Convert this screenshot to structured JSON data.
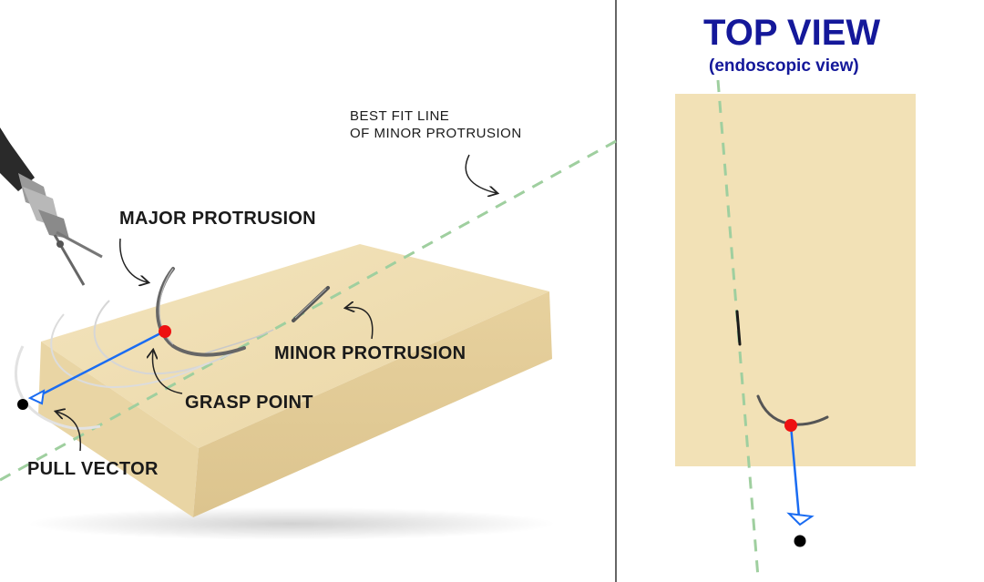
{
  "labels": {
    "best_fit_line_1": "BEST FIT LINE",
    "best_fit_line_2": "OF MINOR PROTRUSION",
    "major_protrusion": "MAJOR PROTRUSION",
    "minor_protrusion": "MINOR PROTRUSION",
    "grasp_point": "GRASP POINT",
    "pull_vector": "PULL VECTOR"
  },
  "top_view": {
    "title": "TOP VIEW",
    "subtitle": "(endoscopic view)"
  },
  "colors": {
    "tissue_top": "#f0dfb4",
    "tissue_front": "#e5cf9b",
    "tissue_side": "#d2b982",
    "top_view_block": "#f2e1b6",
    "best_fit_line": "#9fcf9f",
    "grasp_point": "#ee1111",
    "pull_vector": "#1a6cf2",
    "title": "#14189a",
    "divider": "#666666"
  },
  "icons": [
    "robotic-instrument-icon",
    "suture-needle-icon"
  ]
}
